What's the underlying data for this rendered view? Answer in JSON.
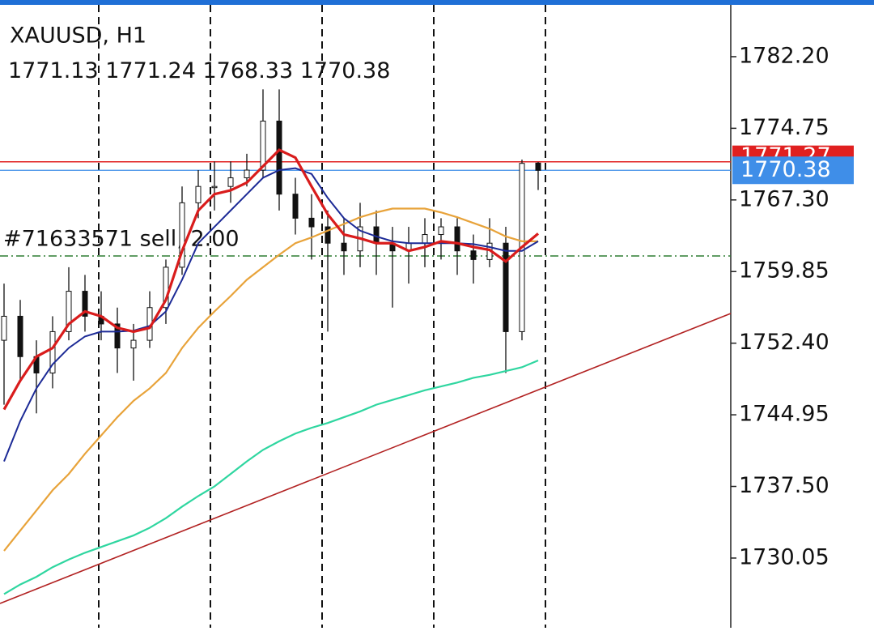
{
  "chart_data": {
    "type": "candlestick",
    "title": "XAUUSD, H1",
    "ylim": [
      1722.8,
      1787.42
    ],
    "yticks": [
      {
        "value": 1782.2,
        "label": "1782.20"
      },
      1774.75,
      {
        "value": 1767.3,
        "label": "1767.30"
      },
      1759.85,
      {
        "value": 1752.4,
        "label": "1752.40"
      },
      1744.95,
      {
        "value": 1737.5,
        "label": "1737.50"
      },
      1730.05
    ],
    "ohlc": {
      "open": [
        1752.7,
        1755.2,
        1751.0,
        1749.3,
        1753.6,
        1757.8,
        1755.2,
        1754.4,
        1751.9,
        1752.7,
        1756.1,
        1760.3,
        1767.0,
        1768.7,
        1768.7,
        1769.6,
        1770.4,
        1775.5,
        1767.9,
        1765.4,
        1764.5,
        1762.8,
        1762.0,
        1764.5,
        1762.8,
        1762.0,
        1762.8,
        1763.7,
        1764.5,
        1762.0,
        1761.1,
        1762.8,
        1753.6,
        1771.13
      ],
      "high": [
        1758.6,
        1756.9,
        1752.7,
        1755.2,
        1760.3,
        1759.5,
        1757.8,
        1756.1,
        1754.4,
        1757.8,
        1761.1,
        1768.7,
        1770.4,
        1771.3,
        1771.3,
        1772.1,
        1778.8,
        1778.8,
        1769.6,
        1767.9,
        1766.2,
        1765.4,
        1767.0,
        1766.2,
        1764.5,
        1764.5,
        1765.4,
        1765.4,
        1765.4,
        1763.7,
        1765.4,
        1764.5,
        1771.5,
        1771.24
      ],
      "low": [
        1746.0,
        1748.5,
        1745.1,
        1747.7,
        1752.7,
        1753.6,
        1752.7,
        1749.3,
        1748.5,
        1751.9,
        1754.4,
        1759.5,
        1765.4,
        1766.2,
        1767.0,
        1768.7,
        1769.6,
        1766.2,
        1763.7,
        1761.1,
        1753.6,
        1759.5,
        1760.3,
        1759.5,
        1756.1,
        1758.6,
        1760.3,
        1761.1,
        1759.5,
        1758.6,
        1760.3,
        1749.3,
        1752.7,
        1768.33
      ],
      "close": [
        1755.2,
        1751.0,
        1749.3,
        1753.6,
        1757.8,
        1755.2,
        1754.4,
        1751.9,
        1752.7,
        1756.1,
        1760.3,
        1767.0,
        1768.7,
        1768.7,
        1769.6,
        1770.4,
        1775.5,
        1767.9,
        1765.4,
        1764.5,
        1762.8,
        1762.0,
        1764.5,
        1762.8,
        1762.0,
        1762.8,
        1763.7,
        1764.5,
        1762.0,
        1761.1,
        1762.8,
        1753.6,
        1771.1,
        1770.38
      ]
    },
    "series": [
      {
        "color": "#e8a33a",
        "values": [
          1730.8,
          1732.9,
          1735.0,
          1737.1,
          1738.8,
          1740.9,
          1742.8,
          1744.7,
          1746.4,
          1747.7,
          1749.3,
          1751.9,
          1754.0,
          1755.7,
          1757.3,
          1759.0,
          1760.3,
          1761.6,
          1762.8,
          1763.4,
          1764.1,
          1764.8,
          1765.5,
          1766.0,
          1766.4,
          1766.4,
          1766.4,
          1766.0,
          1765.5,
          1764.9,
          1764.3,
          1763.5,
          1763.0,
          1763.0
        ]
      },
      {
        "color": "#2fd6a0",
        "values": [
          1726.3,
          1727.3,
          1728.1,
          1729.1,
          1729.9,
          1730.6,
          1731.2,
          1731.8,
          1732.4,
          1733.2,
          1734.2,
          1735.4,
          1736.5,
          1737.5,
          1738.8,
          1740.1,
          1741.3,
          1742.2,
          1743.0,
          1743.6,
          1744.1,
          1744.7,
          1745.3,
          1746.0,
          1746.5,
          1747.0,
          1747.5,
          1747.9,
          1748.3,
          1748.8,
          1749.1,
          1749.5,
          1749.9,
          1750.6
        ]
      },
      {
        "color": "#1c2a96",
        "values": [
          1740.1,
          1744.3,
          1747.7,
          1750.2,
          1751.9,
          1753.1,
          1753.6,
          1753.6,
          1753.7,
          1754.2,
          1755.7,
          1759.0,
          1762.8,
          1764.5,
          1766.2,
          1767.9,
          1769.6,
          1770.4,
          1770.6,
          1770.0,
          1767.5,
          1765.4,
          1764.1,
          1763.5,
          1763.0,
          1762.8,
          1762.8,
          1762.8,
          1762.8,
          1762.7,
          1762.4,
          1762.0,
          1762.0,
          1763.0
        ]
      },
      {
        "color": "#d91c1c",
        "values": [
          1745.5,
          1748.5,
          1751.0,
          1751.9,
          1754.4,
          1755.7,
          1755.2,
          1754.0,
          1753.6,
          1754.0,
          1756.9,
          1762.0,
          1766.2,
          1767.9,
          1768.3,
          1769.1,
          1770.8,
          1772.5,
          1771.7,
          1768.7,
          1765.8,
          1763.7,
          1763.3,
          1762.8,
          1762.8,
          1762.0,
          1762.4,
          1763.0,
          1762.8,
          1762.4,
          1762.1,
          1760.9,
          1762.4,
          1763.8
        ]
      }
    ],
    "trendline": {
      "color": "#b22222",
      "values": [
        1725.33,
        1755.49
      ]
    },
    "order_line": {
      "label": "#71633571 sell, 2.00",
      "value": 1761.47,
      "color": "#2e7d32"
    },
    "ask_line": {
      "value": 1771.27,
      "color": "#e02020"
    },
    "bid_color": "#3f8ee8"
  }
}
